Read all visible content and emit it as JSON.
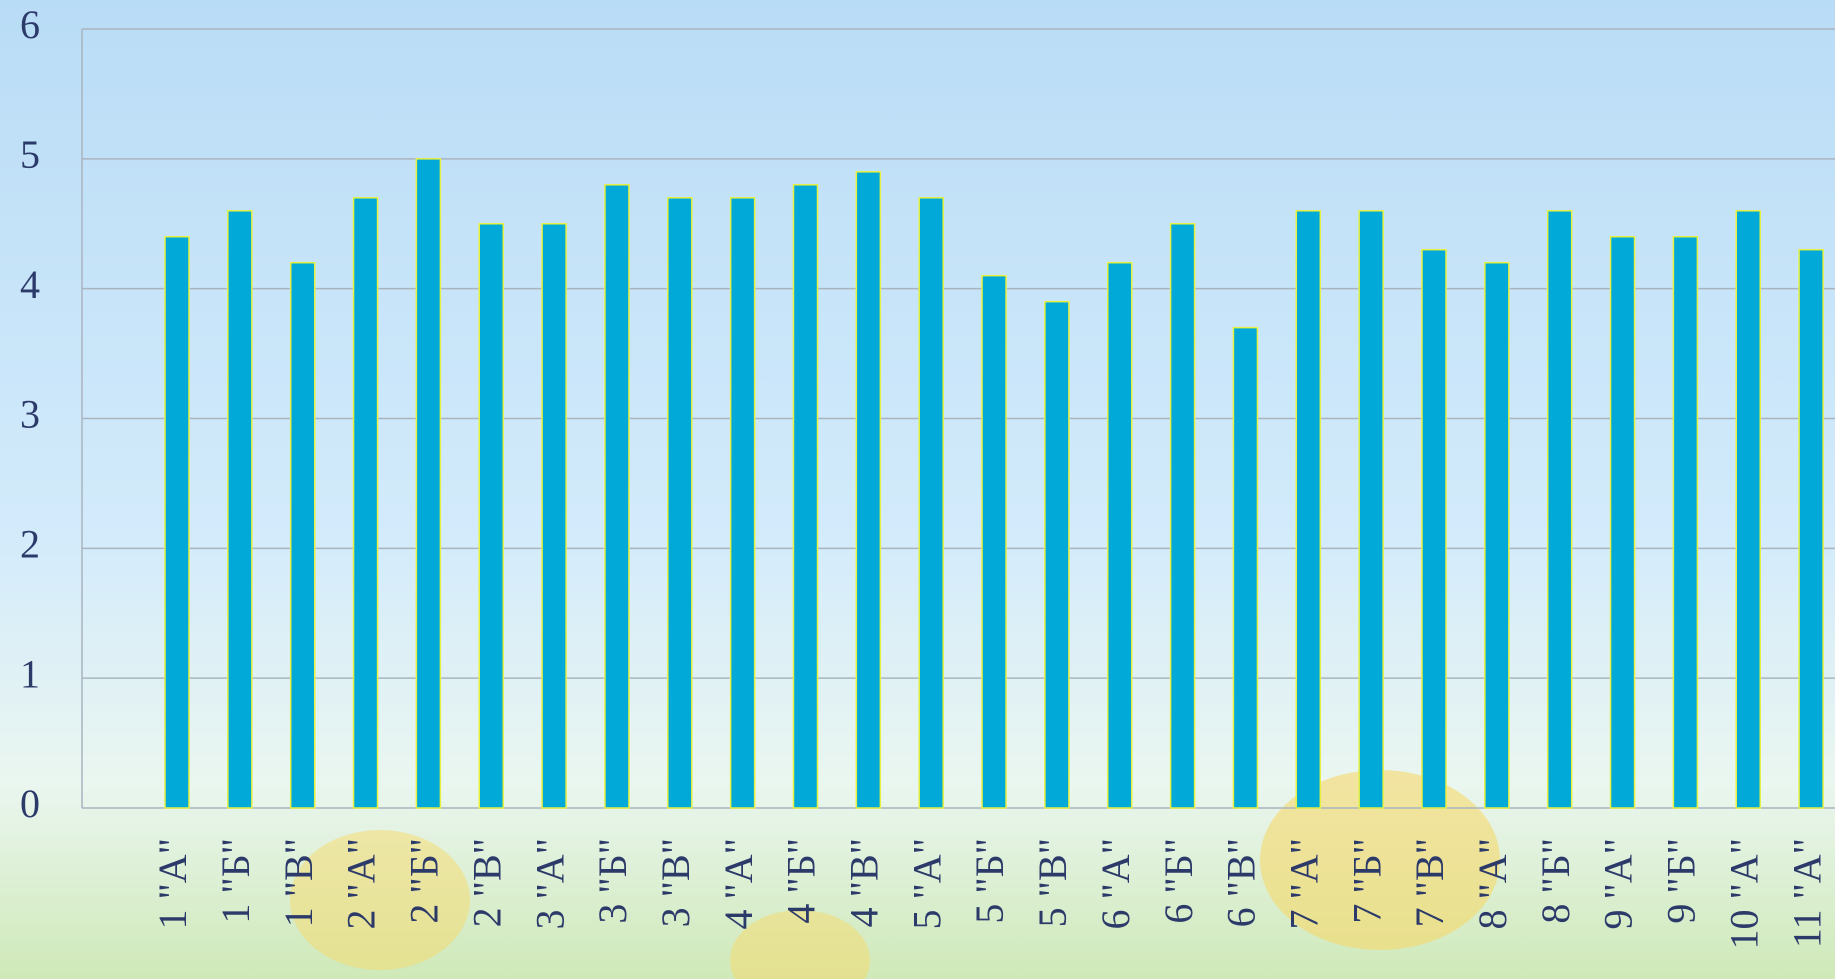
{
  "chart_data": {
    "type": "bar",
    "categories": [
      "1 \"А\"",
      "1 \"Б\"",
      "1 \"В\"",
      "2 \"А\"",
      "2 \"Б\"",
      "2 \"В\"",
      "3 \"А\"",
      "3 \"Б\"",
      "3 \"В\"",
      "4 \"А\"",
      "4 \"Б\"",
      "4 \"В\"",
      "5 \"А\"",
      "5 \"Б\"",
      "5 \"В\"",
      "6 \"А\"",
      "6 \"Б\"",
      "6 \"В\"",
      "7 \"А\"",
      "7 \"Б\"",
      "7 \"В\"",
      "8 \"А\"",
      "8 \"Б\"",
      "9 \"А\"",
      "9 \"Б\"",
      "10 \"А\"",
      "11 \"А\""
    ],
    "values": [
      4.4,
      4.6,
      4.2,
      4.7,
      5.0,
      4.5,
      4.5,
      4.8,
      4.7,
      4.7,
      4.8,
      4.9,
      4.7,
      4.1,
      3.9,
      4.2,
      4.5,
      3.7,
      4.6,
      4.6,
      4.3,
      4.2,
      4.6,
      4.4,
      4.4,
      4.6,
      4.3
    ],
    "color": "#00a9d8",
    "ylim": [
      0,
      6
    ],
    "yticks": [
      0,
      1,
      2,
      3,
      4,
      5,
      6
    ],
    "grid": true
  }
}
